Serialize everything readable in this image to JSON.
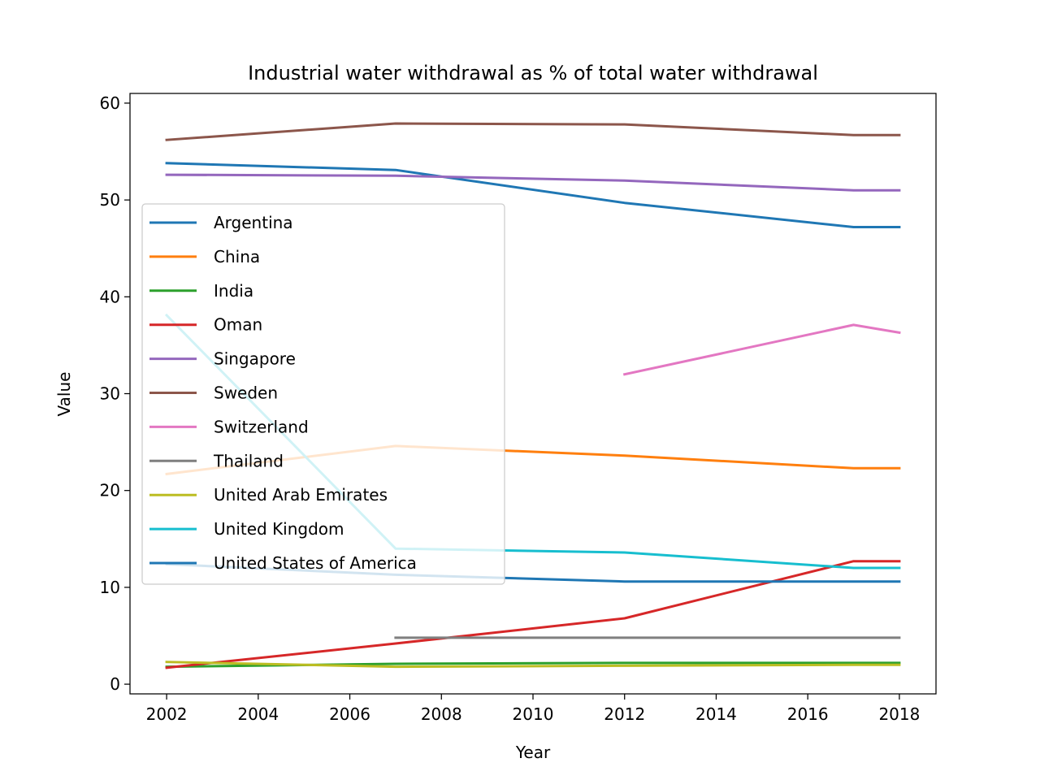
{
  "chart_data": {
    "type": "line",
    "title": "Industrial water withdrawal as % of total water withdrawal",
    "xlabel": "Year",
    "ylabel": "Value",
    "xlim": [
      2001.2,
      2018.8
    ],
    "ylim": [
      -1,
      61
    ],
    "xticks": [
      2002,
      2004,
      2006,
      2008,
      2010,
      2012,
      2014,
      2016,
      2018
    ],
    "yticks": [
      0,
      10,
      20,
      30,
      40,
      50,
      60
    ],
    "legend_position": "center-left",
    "series": [
      {
        "name": "Argentina",
        "color": "#1f77b4",
        "x": [
          2002,
          2007,
          2012,
          2017,
          2018
        ],
        "values": [
          53.8,
          53.1,
          49.7,
          47.2,
          47.2
        ]
      },
      {
        "name": "China",
        "color": "#ff7f0e",
        "x": [
          2002,
          2007,
          2012,
          2017,
          2018
        ],
        "values": [
          21.7,
          24.6,
          23.6,
          22.3,
          22.3
        ]
      },
      {
        "name": "India",
        "color": "#2ca02c",
        "x": [
          2002,
          2007,
          2012,
          2017,
          2018
        ],
        "values": [
          1.8,
          2.1,
          2.2,
          2.2,
          2.2
        ]
      },
      {
        "name": "Oman",
        "color": "#d62728",
        "x": [
          2002,
          2007,
          2012,
          2017,
          2018
        ],
        "values": [
          1.7,
          4.2,
          6.8,
          12.7,
          12.7
        ]
      },
      {
        "name": "Singapore",
        "color": "#9467bd",
        "x": [
          2002,
          2007,
          2012,
          2017,
          2018
        ],
        "values": [
          52.6,
          52.5,
          52.0,
          51.0,
          51.0
        ]
      },
      {
        "name": "Sweden",
        "color": "#8c564b",
        "x": [
          2002,
          2007,
          2012,
          2017,
          2018
        ],
        "values": [
          56.2,
          57.9,
          57.8,
          56.7,
          56.7
        ]
      },
      {
        "name": "Switzerland",
        "color": "#e377c2",
        "x": [
          2012,
          2017,
          2018
        ],
        "values": [
          32.0,
          37.1,
          36.3
        ]
      },
      {
        "name": "Thailand",
        "color": "#7f7f7f",
        "x": [
          2007,
          2012,
          2017,
          2018
        ],
        "values": [
          4.8,
          4.8,
          4.8,
          4.8
        ]
      },
      {
        "name": "United Arab Emirates",
        "color": "#bcbd22",
        "x": [
          2002,
          2007,
          2012,
          2017,
          2018
        ],
        "values": [
          2.3,
          1.8,
          1.9,
          2.0,
          2.0
        ]
      },
      {
        "name": "United Kingdom",
        "color": "#17becf",
        "x": [
          2002,
          2007,
          2012,
          2017,
          2018
        ],
        "values": [
          38.1,
          14.0,
          13.6,
          12.0,
          12.0
        ]
      },
      {
        "name": "United States of America",
        "color": "#1f77b4",
        "x": [
          2002,
          2007,
          2012,
          2017,
          2018
        ],
        "values": [
          12.4,
          11.3,
          10.6,
          10.6,
          10.6
        ]
      }
    ]
  }
}
